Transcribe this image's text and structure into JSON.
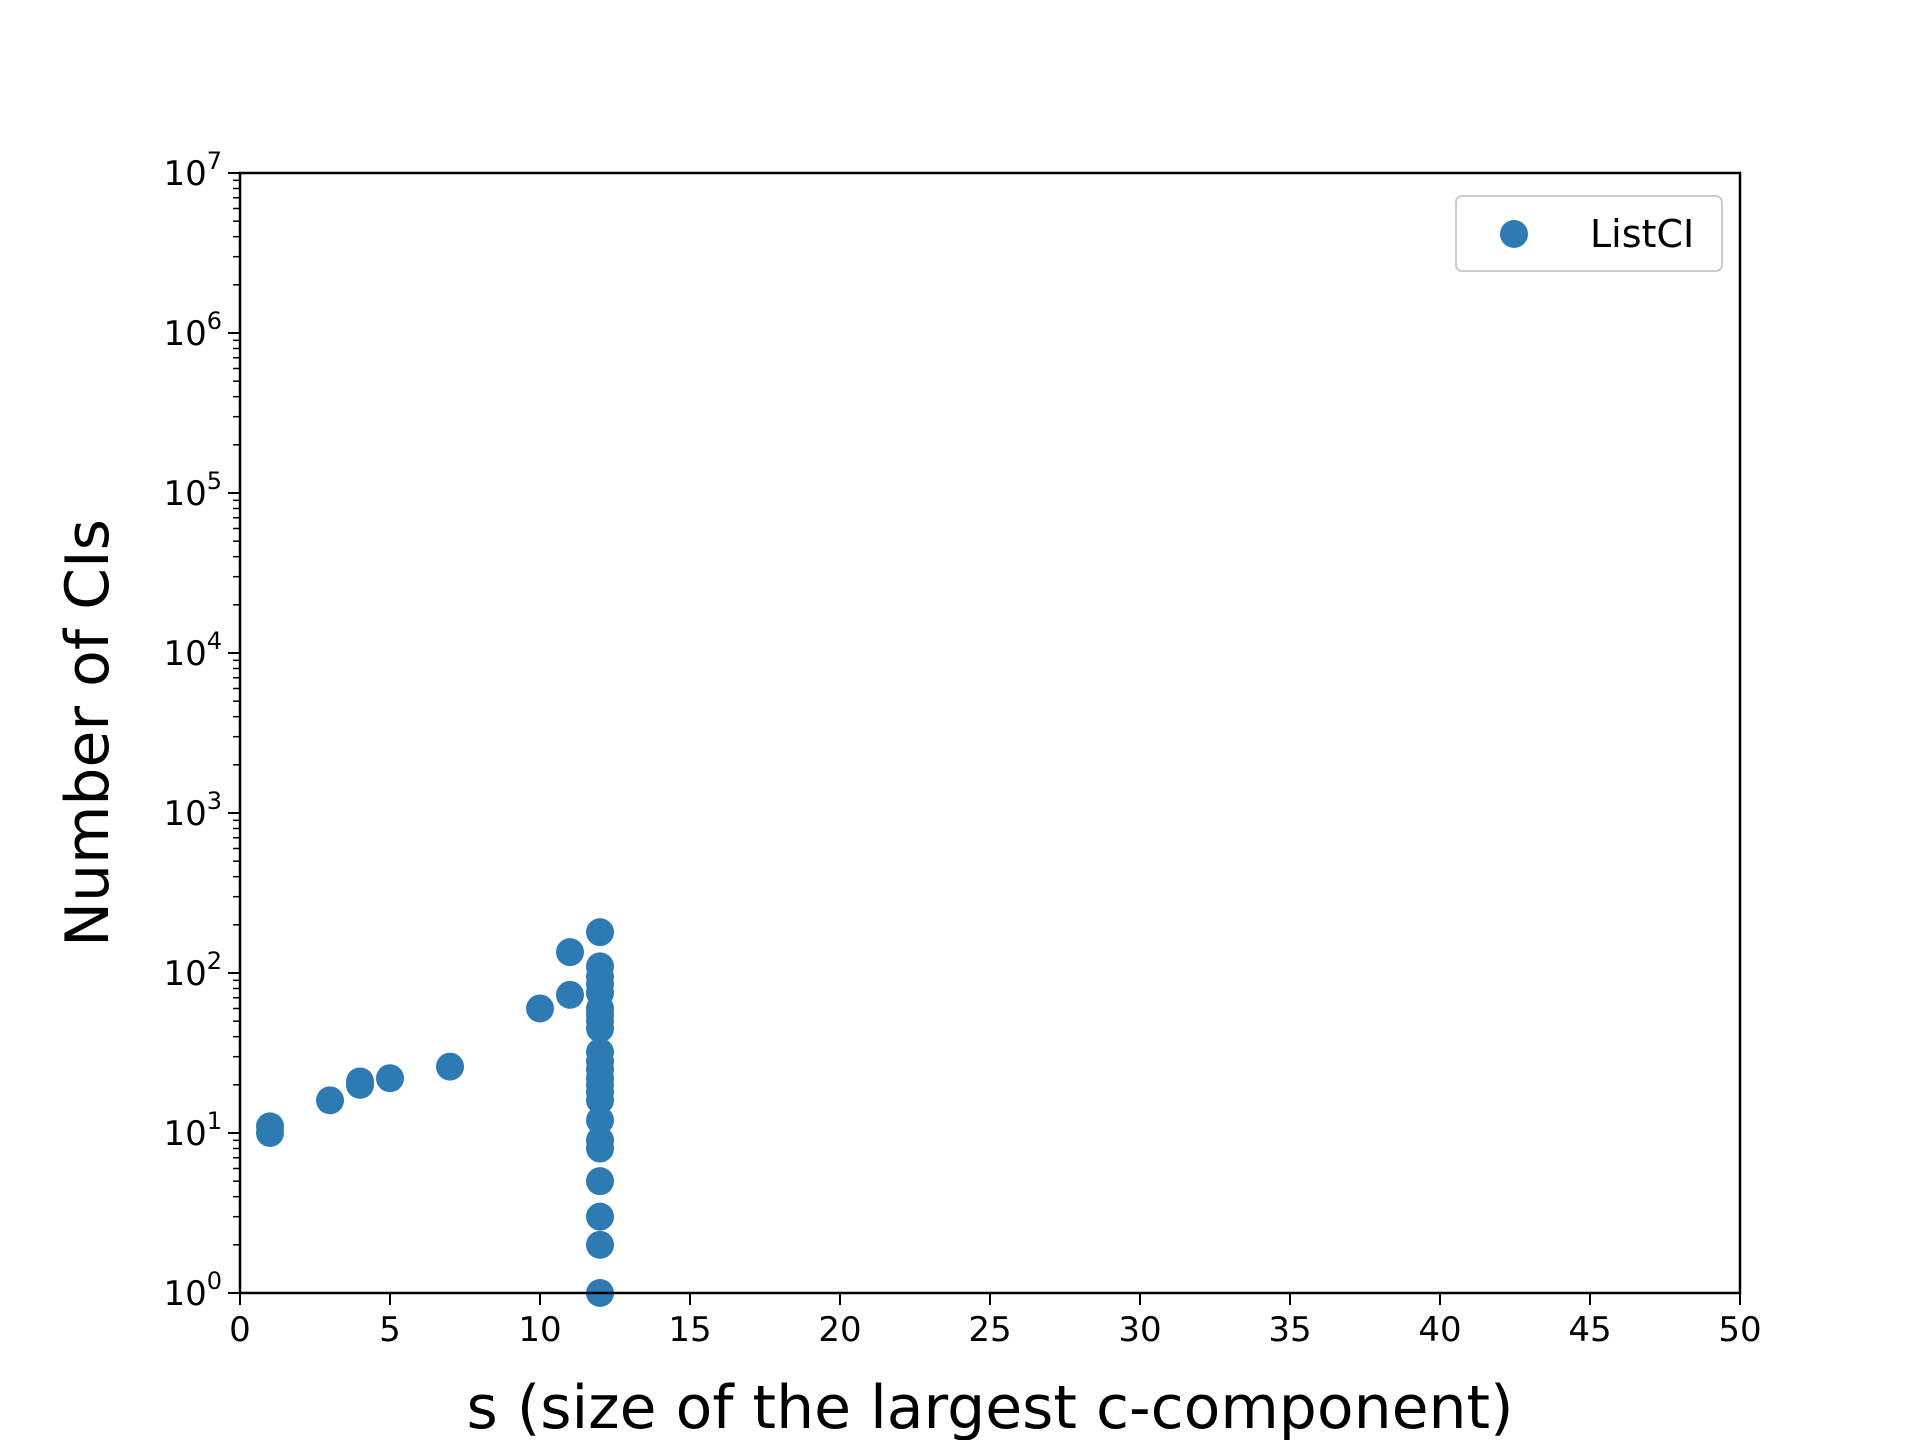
{
  "chart_data": {
    "type": "scatter",
    "title": "",
    "xlabel": "s (size of the largest c-component)",
    "ylabel": "Number of CIs",
    "xlim": [
      0,
      50
    ],
    "ylim": [
      1,
      10000000
    ],
    "yscale": "log",
    "grid": false,
    "legend_position": "top-right",
    "x_ticks": [
      "0",
      "5",
      "10",
      "15",
      "20",
      "25",
      "30",
      "35",
      "40",
      "45",
      "50"
    ],
    "y_ticks": [
      {
        "base": "10",
        "exp": "0"
      },
      {
        "base": "10",
        "exp": "1"
      },
      {
        "base": "10",
        "exp": "2"
      },
      {
        "base": "10",
        "exp": "3"
      },
      {
        "base": "10",
        "exp": "4"
      },
      {
        "base": "10",
        "exp": "5"
      },
      {
        "base": "10",
        "exp": "6"
      },
      {
        "base": "10",
        "exp": "7"
      }
    ],
    "series": [
      {
        "name": "ListCI",
        "color": "#2e7bb4",
        "points": [
          [
            1,
            10
          ],
          [
            1,
            11
          ],
          [
            3,
            16
          ],
          [
            4,
            20
          ],
          [
            4,
            21
          ],
          [
            5,
            22
          ],
          [
            7,
            26
          ],
          [
            10,
            60
          ],
          [
            11,
            73
          ],
          [
            11,
            135
          ],
          [
            12,
            1
          ],
          [
            12,
            2
          ],
          [
            12,
            3
          ],
          [
            12,
            5
          ],
          [
            12,
            8
          ],
          [
            12,
            9
          ],
          [
            12,
            12
          ],
          [
            12,
            16
          ],
          [
            12,
            18
          ],
          [
            12,
            20
          ],
          [
            12,
            22
          ],
          [
            12,
            25
          ],
          [
            12,
            28
          ],
          [
            12,
            32
          ],
          [
            12,
            45
          ],
          [
            12,
            50
          ],
          [
            12,
            55
          ],
          [
            12,
            60
          ],
          [
            12,
            75
          ],
          [
            12,
            85
          ],
          [
            12,
            95
          ],
          [
            12,
            110
          ],
          [
            12,
            180
          ]
        ]
      }
    ]
  }
}
